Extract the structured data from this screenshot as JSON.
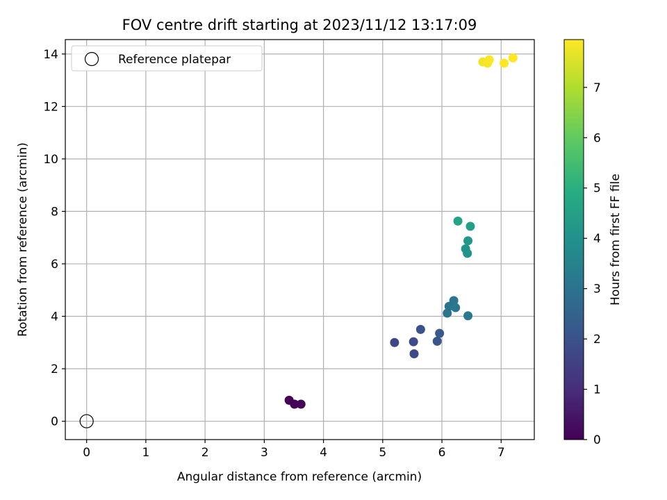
{
  "chart_data": {
    "type": "scatter",
    "title": "FOV centre drift starting at 2023/11/12 13:17:09",
    "xlabel": "Angular distance from reference (arcmin)",
    "ylabel": "Rotation from reference (arcmin)",
    "xlim": [
      -0.36,
      7.56
    ],
    "ylim": [
      -0.7,
      14.55
    ],
    "xticks": [
      0,
      1,
      2,
      3,
      4,
      5,
      6,
      7
    ],
    "yticks": [
      0,
      2,
      4,
      6,
      8,
      10,
      12,
      14
    ],
    "grid": true,
    "legend": {
      "placement": "top-left",
      "entries": [
        "Reference platepar"
      ]
    },
    "reference_point": {
      "x": 0,
      "y": 0
    },
    "colorbar": {
      "label": "Hours from first FF file",
      "range": [
        0,
        7.95
      ],
      "ticks": [
        0,
        1,
        2,
        3,
        4,
        5,
        6,
        7
      ],
      "colormap": "viridis"
    },
    "series": [
      {
        "points": [
          {
            "x": 3.42,
            "y": 0.8,
            "t": 0.0
          },
          {
            "x": 3.51,
            "y": 0.65,
            "t": 0.05
          },
          {
            "x": 3.62,
            "y": 0.65,
            "t": 0.1
          },
          {
            "x": 5.2,
            "y": 3.0,
            "t": 1.7
          },
          {
            "x": 5.52,
            "y": 3.03,
            "t": 1.8
          },
          {
            "x": 5.53,
            "y": 2.57,
            "t": 1.75
          },
          {
            "x": 5.64,
            "y": 3.5,
            "t": 2.0
          },
          {
            "x": 5.92,
            "y": 3.05,
            "t": 2.1
          },
          {
            "x": 5.96,
            "y": 3.35,
            "t": 2.2
          },
          {
            "x": 6.09,
            "y": 4.12,
            "t": 3.0
          },
          {
            "x": 6.12,
            "y": 4.38,
            "t": 3.05
          },
          {
            "x": 6.2,
            "y": 4.6,
            "t": 3.1
          },
          {
            "x": 6.23,
            "y": 4.33,
            "t": 3.15
          },
          {
            "x": 6.44,
            "y": 4.02,
            "t": 3.2
          },
          {
            "x": 6.27,
            "y": 7.63,
            "t": 4.6
          },
          {
            "x": 6.48,
            "y": 7.43,
            "t": 4.5
          },
          {
            "x": 6.44,
            "y": 6.88,
            "t": 4.2
          },
          {
            "x": 6.4,
            "y": 6.57,
            "t": 4.1
          },
          {
            "x": 6.43,
            "y": 6.4,
            "t": 4.05
          },
          {
            "x": 6.69,
            "y": 13.7,
            "t": 7.8
          },
          {
            "x": 6.77,
            "y": 13.65,
            "t": 7.85
          },
          {
            "x": 6.8,
            "y": 13.78,
            "t": 7.9
          },
          {
            "x": 7.05,
            "y": 13.65,
            "t": 7.95
          },
          {
            "x": 7.2,
            "y": 13.85,
            "t": 7.95
          }
        ]
      }
    ]
  }
}
